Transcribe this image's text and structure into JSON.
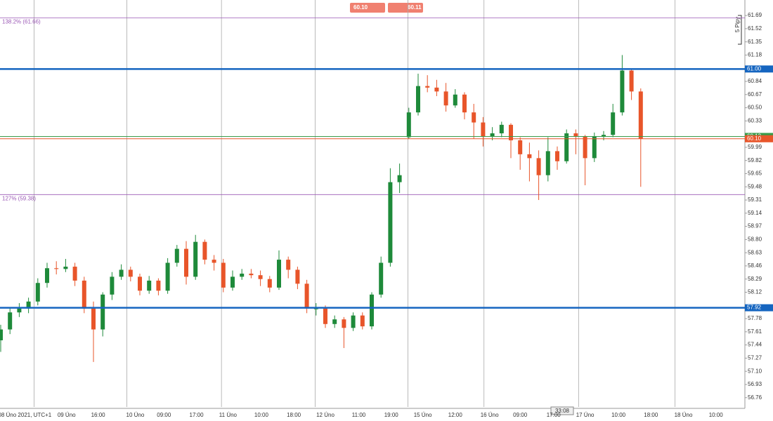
{
  "chart_data": {
    "type": "candlestick",
    "up_color": "#1e8a3a",
    "down_color": "#e8552a",
    "grid": true,
    "ylim": [
      56.64,
      61.89
    ],
    "yticks": [
      61.69,
      61.52,
      61.35,
      61.18,
      60.84,
      60.67,
      {
        "value": 60.5,
        "label": "60.50"
      },
      60.33,
      59.99,
      59.82,
      59.65,
      59.48,
      59.31,
      59.14,
      58.97,
      {
        "value": 58.8,
        "label": "58.80"
      },
      58.63,
      58.46,
      58.29,
      58.12,
      57.78,
      57.61,
      57.44,
      57.27,
      {
        "value": 57.1,
        "label": "57.10"
      },
      56.93,
      56.76
    ],
    "xticks": [
      {
        "value": 2.6,
        "label": "08 Úno 2021, UTC+1"
      },
      {
        "value": 7.1,
        "label": "09 Úno"
      },
      {
        "value": 10.5,
        "label": "16:00"
      },
      {
        "value": 14.5,
        "label": "10 Úno"
      },
      {
        "value": 17.6,
        "label": "09:00"
      },
      {
        "value": 21.1,
        "label": "17:00"
      },
      {
        "value": 24.5,
        "label": "11 Úno"
      },
      {
        "value": 28.1,
        "label": "10:00"
      },
      {
        "value": 31.6,
        "label": "18:00"
      },
      {
        "value": 35,
        "label": "12 Úno"
      },
      {
        "value": 38.6,
        "label": "11:00"
      },
      {
        "value": 42.1,
        "label": "19:00"
      },
      {
        "value": 45.5,
        "label": "15 Úno"
      },
      {
        "value": 49,
        "label": "12:00"
      },
      {
        "value": 52.7,
        "label": "16 Úno"
      },
      {
        "value": 56,
        "label": "09:00"
      },
      {
        "value": 59.6,
        "label": "17:00"
      },
      {
        "value": 63,
        "label": "17 Úno"
      },
      {
        "value": 66.6,
        "label": "10:00"
      },
      {
        "value": 70.1,
        "label": "18:00"
      },
      {
        "value": 73.6,
        "label": "18 Úno"
      },
      {
        "value": 77.1,
        "label": "10:00"
      }
    ],
    "xgrid": [
      3.6,
      13.6,
      23.8,
      33.9,
      43.9,
      52.1,
      62.3,
      72.7
    ],
    "candles": [
      [
        57.5,
        57.7,
        57.35,
        57.64
      ],
      [
        57.64,
        57.92,
        57.58,
        57.86
      ],
      [
        57.86,
        57.98,
        57.8,
        57.91
      ],
      [
        57.91,
        58.05,
        57.85,
        58.0
      ],
      [
        58.0,
        58.3,
        57.95,
        58.24
      ],
      [
        58.24,
        58.5,
        58.18,
        58.43
      ],
      [
        58.43,
        58.52,
        58.35,
        58.42
      ],
      [
        58.42,
        58.55,
        58.38,
        58.45
      ],
      [
        58.45,
        58.5,
        58.2,
        58.27
      ],
      [
        58.27,
        58.32,
        57.85,
        57.91
      ],
      [
        57.91,
        58.0,
        57.22,
        57.64
      ],
      [
        57.64,
        58.12,
        57.55,
        58.09
      ],
      [
        58.09,
        58.38,
        58.02,
        58.32
      ],
      [
        58.32,
        58.48,
        58.28,
        58.41
      ],
      [
        58.41,
        58.45,
        58.26,
        58.32
      ],
      [
        58.32,
        58.36,
        58.08,
        58.14
      ],
      [
        58.14,
        58.33,
        58.1,
        58.27
      ],
      [
        58.27,
        58.3,
        58.08,
        58.14
      ],
      [
        58.14,
        58.56,
        58.1,
        58.5
      ],
      [
        58.5,
        58.73,
        58.45,
        58.68
      ],
      [
        58.68,
        58.78,
        58.22,
        58.32
      ],
      [
        58.32,
        58.86,
        58.28,
        58.77
      ],
      [
        58.77,
        58.8,
        58.48,
        58.54
      ],
      [
        58.54,
        58.6,
        58.4,
        58.5
      ],
      [
        58.5,
        58.55,
        58.12,
        58.18
      ],
      [
        58.18,
        58.4,
        58.14,
        58.32
      ],
      [
        58.32,
        58.42,
        58.28,
        58.36
      ],
      [
        58.36,
        58.42,
        58.3,
        58.34
      ],
      [
        58.34,
        58.4,
        58.2,
        58.29
      ],
      [
        58.29,
        58.33,
        58.12,
        58.18
      ],
      [
        58.18,
        58.66,
        58.15,
        58.54
      ],
      [
        58.54,
        58.58,
        58.3,
        58.41
      ],
      [
        58.41,
        58.45,
        58.16,
        58.23
      ],
      [
        58.23,
        58.28,
        57.85,
        57.91
      ],
      [
        57.91,
        57.98,
        57.82,
        57.91
      ],
      [
        57.91,
        57.95,
        57.66,
        57.71
      ],
      [
        57.71,
        57.82,
        57.66,
        57.77
      ],
      [
        57.77,
        57.8,
        57.4,
        57.66
      ],
      [
        57.66,
        57.86,
        57.62,
        57.82
      ],
      [
        57.82,
        57.86,
        57.64,
        57.68
      ],
      [
        57.68,
        58.12,
        57.64,
        58.09
      ],
      [
        58.09,
        58.58,
        58.05,
        58.5
      ],
      [
        58.5,
        59.72,
        58.45,
        59.54
      ],
      [
        59.54,
        59.78,
        59.4,
        59.63
      ],
      [
        60.12,
        60.5,
        60.1,
        60.44
      ],
      [
        60.44,
        60.94,
        60.4,
        60.78
      ],
      [
        60.78,
        60.92,
        60.7,
        60.76
      ],
      [
        60.76,
        60.86,
        60.65,
        60.71
      ],
      [
        60.71,
        60.82,
        60.45,
        60.53
      ],
      [
        60.53,
        60.74,
        60.5,
        60.67
      ],
      [
        60.67,
        60.7,
        60.35,
        60.44
      ],
      [
        60.44,
        60.55,
        60.1,
        60.31
      ],
      [
        60.31,
        60.38,
        60.0,
        60.13
      ],
      [
        60.13,
        60.25,
        60.08,
        60.17
      ],
      [
        60.17,
        60.32,
        60.12,
        60.28
      ],
      [
        60.28,
        60.3,
        59.85,
        60.08
      ],
      [
        60.08,
        60.12,
        59.7,
        59.9
      ],
      [
        59.9,
        60.05,
        59.55,
        59.85
      ],
      [
        59.85,
        59.95,
        59.31,
        59.63
      ],
      [
        59.63,
        60.12,
        59.55,
        59.94
      ],
      [
        59.94,
        60.0,
        59.7,
        59.81
      ],
      [
        59.81,
        60.22,
        59.78,
        60.17
      ],
      [
        60.17,
        60.22,
        59.9,
        60.13
      ],
      [
        60.13,
        60.15,
        59.5,
        59.85
      ],
      [
        59.85,
        60.18,
        59.8,
        60.13
      ],
      [
        60.13,
        60.2,
        60.08,
        60.15
      ],
      [
        60.15,
        60.55,
        60.12,
        60.44
      ],
      [
        60.44,
        61.18,
        60.4,
        60.98
      ],
      [
        60.98,
        61.0,
        60.6,
        60.71
      ],
      [
        60.71,
        60.75,
        59.48,
        60.1
      ]
    ],
    "levels": [
      {
        "value": 61.66,
        "label": "138.2% (61.66)",
        "color": "#9b59b6"
      },
      {
        "value": 59.38,
        "label": "127% (59.38)",
        "color": "#9b59b6"
      }
    ],
    "price_lines": [
      {
        "value": 61.0,
        "label": "61.00",
        "color": "#1565c0"
      },
      {
        "value": 57.92,
        "label": "57.92",
        "color": "#1565c0"
      },
      {
        "value": 60.13,
        "label": "60.13",
        "color": "#3a9a4a"
      },
      {
        "value": 60.1,
        "label": "60.10",
        "color": "#e8552a"
      }
    ],
    "sell_button": "60.10",
    "buy_button": "60.11",
    "pip_scale": "5 Pipy",
    "countdown": "33:08"
  }
}
